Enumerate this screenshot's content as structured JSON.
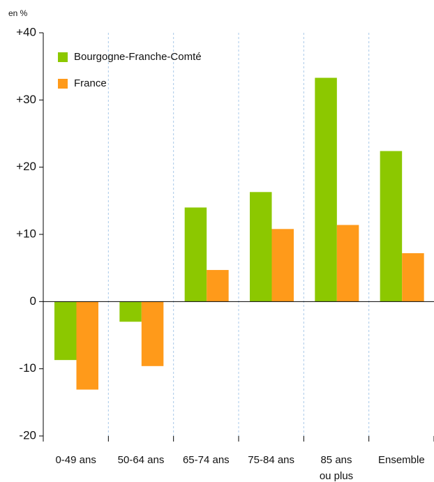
{
  "chart_data": {
    "type": "bar",
    "y_label": "en %",
    "categories": [
      "0-49 ans",
      "50-64 ans",
      "65-74 ans",
      "75-84 ans",
      "85 ans\nou plus",
      "Ensemble"
    ],
    "series": [
      {
        "name": "Bourgogne-Franche-Comté",
        "color": "#8cc800",
        "values": [
          -8.7,
          -3.0,
          14.0,
          16.3,
          33.3,
          22.4
        ]
      },
      {
        "name": "France",
        "color": "#ff9a1a",
        "values": [
          -13.1,
          -9.6,
          4.7,
          10.8,
          11.4,
          7.2
        ]
      }
    ],
    "ylim": [
      -20,
      40
    ],
    "yticks": [
      {
        "value": 40,
        "label": "+40"
      },
      {
        "value": 30,
        "label": "+30"
      },
      {
        "value": 20,
        "label": "+20"
      },
      {
        "value": 10,
        "label": "+10"
      },
      0,
      -10,
      -20
    ],
    "legend": "top-left",
    "grid": true
  }
}
